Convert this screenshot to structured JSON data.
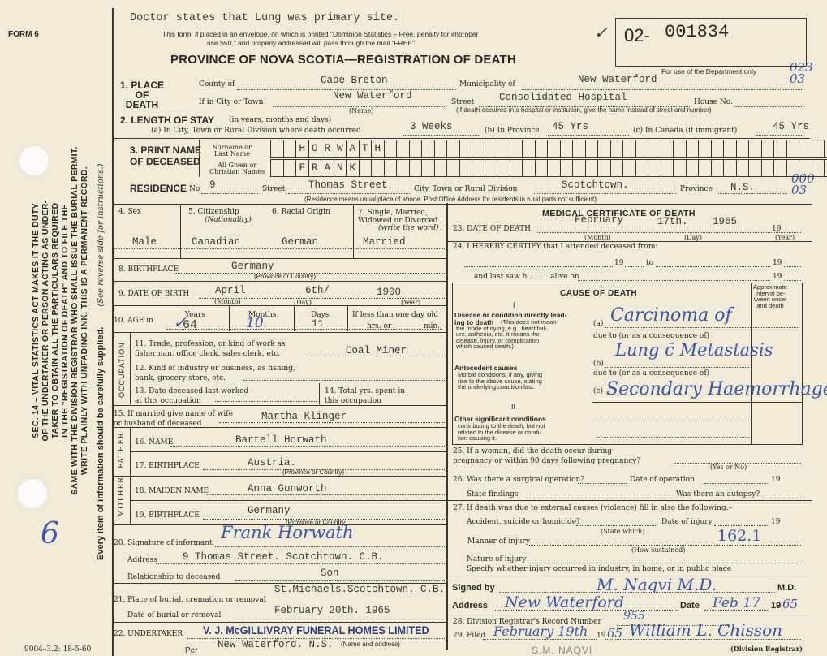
{
  "header": {
    "form_no": "FORM 6",
    "doctor_note": "Doctor states that Lung was primary site.",
    "mail_notice_1": "This form, if placed in an envelope, on which is printed \"Dominion Statistics – Free, penalty for improper",
    "mail_notice_2": "use $50,\" and properly addressed will pass through the mail \"FREE\"",
    "title": "PROVINCE OF NOVA SCOTIA—REGISTRATION OF DEATH",
    "reg_prefix": "02-",
    "reg_number": "001834",
    "check_mark": "✓",
    "dept_use": "For use of the Department only",
    "dept_code_1": "023\n03",
    "dept_code_2": "000\n03"
  },
  "side": {
    "statute_lines": [
      "SEC. 14 – VITAL STATISTICS ACT MAKES IT THE DUTY",
      "OF THE UNDERTAKER OR PERSON ACTING AS UNDER-",
      "TAKER TO OBTAIN ALL THE PARTICULARS REQUIRED",
      "IN THE \"REGISTRATION OF DEATH\" AND TO FILE THE",
      "SAME WITH THE DIVISION REGISTRAR WHO SHALL ISSUE THE BURIAL PERMIT.",
      "WRITE PLAINLY WITH UNFADING INK. THIS IS A PERMANENT RECORD."
    ],
    "every_item": "Every item of information should be carefully supplied.",
    "see_reverse": "(See reverse side for instructions.)",
    "margin_mark": "6",
    "form_code": "9004–3.2: 18-5-60"
  },
  "place": {
    "label": "1. PLACE\nOF\nDEATH",
    "county_label": "County of",
    "county": "Cape Breton",
    "municipality_label": "Municipality of",
    "municipality": "New Waterford",
    "city_label": "If in City or Town",
    "city": "New Waterford",
    "name_note": "(Name)",
    "street_label": "Street",
    "street": "Consolidated Hospital",
    "house_label": "House No.",
    "hospital_note": "(If death occurred in a hospital or institution, give the name instead of street and number)"
  },
  "stay": {
    "label": "2. LENGTH OF STAY",
    "label_note": "(in years, months and days)",
    "a_label": "(a) In City, Town or Rural Division where death occurred",
    "a": "3 Weeks",
    "b_label": "(b) In Province",
    "b": "45 Yrs",
    "c_label": "(c) In Canada (if immigrant)",
    "c": "45 Yrs"
  },
  "name": {
    "label": "3. PRINT NAME\nOF DECEASED",
    "surname_label": "Surname or\nLast Name",
    "surname": [
      "H",
      "O",
      "R",
      "W",
      "A",
      "T",
      "H"
    ],
    "given_label": "All Given or\nChristian Names",
    "given": [
      "F",
      "R",
      "A",
      "N",
      "K"
    ]
  },
  "residence": {
    "label": "RESIDENCE",
    "no_label": "No",
    "no": "9",
    "street_label": "Street",
    "street": "Thomas Street",
    "city_label": "City, Town or Rural Division",
    "city": "Scotchtown.",
    "province_label": "Province",
    "province": "N.S.",
    "note": "(Residence means usual place of abode. Post Office Address for residents in rural parts not sufficient)"
  },
  "personal": {
    "sex_label": "4. Sex",
    "sex": "Male",
    "cit_label": "5. Citizenship",
    "cit_note": "(Nationality)",
    "cit": "Canadian",
    "race_label": "6. Racial Origin",
    "race": "German",
    "marital_label": "7. Single, Married,\nWidowed or Divorced",
    "marital_note": "(write the word)",
    "marital": "Married",
    "birthplace_label": "8. BIRTHPLACE",
    "birthplace": "Germany",
    "birthplace_note": "(Province or Country)",
    "dob_label": "9. DATE OF BIRTH",
    "dob_month": "April",
    "dob_day": "6th/",
    "dob_year": "1900",
    "month_note": "(Month)",
    "day_note": "(Day)",
    "year_note": "(Year)",
    "age_label": "10. AGE in",
    "years_label": "Years",
    "years": "64",
    "months_label": "Months",
    "months": "10",
    "days_label": "Days",
    "days": "11",
    "less_day_label": "If less than one day old",
    "hrs_label": "hrs. or",
    "min_label": "min."
  },
  "occupation": {
    "side_label": "OCCUPATION",
    "q11": "11. Trade, profession, or kind of work as\nfisherman, office clerk, sales clerk, etc.",
    "trade": "Coal Miner",
    "q12": "12. Kind of industry or business, as fishing,\nbank, grocery store, etc.",
    "q13": "13. Date deceased last worked\nat this occupation",
    "q14": "14. Total yrs. spent in\nthis occupation"
  },
  "spouse": {
    "label": "15. If married give name of wife\nor husband of deceased",
    "value": "Martha Klinger"
  },
  "father": {
    "side_label": "FATHER",
    "name_label": "16. NAME",
    "name": "Bartell Horwath",
    "bp_label": "17. BIRTHPLACE",
    "bp": "Austria.",
    "bp_note": "(Province or Country)"
  },
  "mother": {
    "side_label": "MOTHER",
    "name_label": "18. MAIDEN NAME",
    "name": "Anna Gunworth",
    "bp_label": "19. BIRTHPLACE",
    "bp": "Germany",
    "bp_note": "(Province or Country"
  },
  "informant": {
    "sig_label": "20. Signature of informant",
    "signature": "Frank Horwath",
    "address_label": "Address",
    "address": "9 Thomas Street. Scotchtown. C.B.",
    "rel_label": "Relationship to deceased",
    "rel": "Son"
  },
  "burial": {
    "place_label": "21. Place of burial, cremation or removal",
    "place": "St.Michaels.Scotchtown. C.B.",
    "date_label": "Date of burial or removal",
    "date": "February  20th. 1965"
  },
  "undertaker": {
    "label": "22. UNDERTAKER",
    "stamp": "V. J. McGILLIVRAY FUNERAL HOMES LIMITED",
    "address": "New Waterford. N.S.",
    "note": "(Name and address)",
    "per": "Per"
  },
  "medical": {
    "title": "MEDICAL CERTIFICATE OF DEATH",
    "dod_label": "23. DATE OF DEATH",
    "dod_month": "February",
    "dod_day": "17th.",
    "dod_year": "1965",
    "nineteen": "19",
    "certify_label": "24. I HEREBY CERTIFY that I attended deceased from:",
    "to_label": "to",
    "last_saw": "and last saw h ........ alive on",
    "cause_title": "CAUSE OF DEATH",
    "roman_1": "I",
    "roman_2": "II",
    "interval": "Approximate\ninterval be-\ntween onset\nand death",
    "disease_label": "Disease or condition directly lead-\ning to death",
    "disease_note": "(This does not mean\nthe mode of dying, e.g., heart fail-\nure, asthenia, etc. It means the\ndisease, injury, or complication\nwhich caused death.)",
    "a": "(a)",
    "b": "(b)",
    "c": "(c)",
    "due_to": "due to (or as a consequence of)",
    "cause_a": "Carcinoma of",
    "cause_b": "Lung c̄ Metastasis",
    "cause_c": "Secondary Haemorrhage",
    "antecedent_label": "Antecedent causes",
    "antecedent_note": "Morbid conditions, if any, giving\nrise to the above cause, stating\nthe underlying condition last.",
    "other_label": "Other significant conditions",
    "other_note": "contributing to the death, but not\nrelated to the disease or condi-\ntion causing it.",
    "q25": "25. If a woman, did the death occur during\npregnancy or within 90 days following pregnancy?",
    "yes_no": "(Yes or No)",
    "q26": "26. Was there a surgical operation?",
    "op_date": "Date of operation",
    "findings": "State findings",
    "autopsy": "Was there an autopsy?",
    "q27": "27. If death was due to external causes (violence) fill in also the following:–",
    "accident": "Accident, suicide or homicide?",
    "state_which": "(State which)",
    "injury_date": "Date of injury",
    "manner": "Manner of injury",
    "how": "(How sustained)",
    "code": "162.1",
    "nature": "Nature of injury",
    "specify": "Specify whether injury occurred in industry, in home, or in public place",
    "signed_label": "Signed by",
    "signature": "M. Naqvi M.D.",
    "md": "M.D.",
    "address_label": "Address",
    "address": "New Waterford",
    "date_label": "Date",
    "date": "Feb 17",
    "year_prefix": "19",
    "year": "65",
    "q28": "28. Division Registrar's Record Number",
    "record_no": "955",
    "q29": "29. Filed",
    "filed": "February 19th",
    "filed_year": "65",
    "registrar_sig": "William L. Chisson",
    "registrar_note": "(Division Registrar)",
    "printed_name": "S.M. NAQVI"
  }
}
